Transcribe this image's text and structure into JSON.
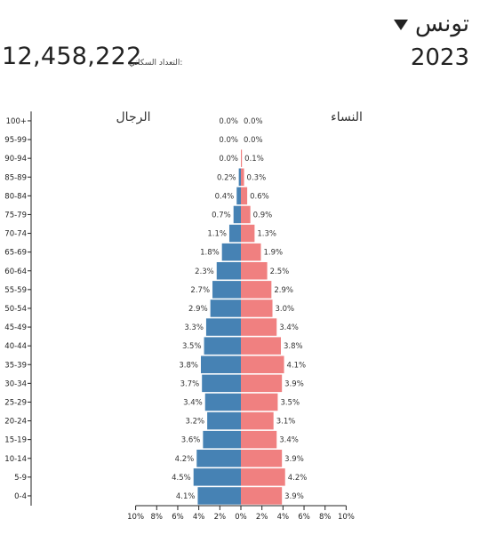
{
  "header": {
    "country": "تونس",
    "year": "2023",
    "population_label": "التعداد السكاني:",
    "population_value": "12,458,222"
  },
  "colors": {
    "male": "#4682b4",
    "female": "#f08080"
  },
  "chart_data": {
    "type": "bar",
    "orientation": "horizontal",
    "labels": {
      "male": "الرجال",
      "female": "النساء"
    },
    "categories": [
      "0-4",
      "5-9",
      "10-14",
      "15-19",
      "20-24",
      "25-29",
      "30-34",
      "35-39",
      "40-44",
      "45-49",
      "50-54",
      "55-59",
      "60-64",
      "65-69",
      "70-74",
      "75-79",
      "80-84",
      "85-89",
      "90-94",
      "95-99",
      "100+"
    ],
    "series": [
      {
        "name": "الرجال",
        "values": [
          4.1,
          4.5,
          4.2,
          3.6,
          3.2,
          3.4,
          3.7,
          3.8,
          3.5,
          3.3,
          2.9,
          2.7,
          2.3,
          1.8,
          1.1,
          0.7,
          0.4,
          0.2,
          0.0,
          0.0,
          0.0
        ],
        "value_labels": [
          "4.1%",
          "4.5%",
          "4.2%",
          "3.6%",
          "3.2%",
          "3.4%",
          "3.7%",
          "3.8%",
          "3.5%",
          "3.3%",
          "2.9%",
          "2.7%",
          "2.3%",
          "1.8%",
          "1.1%",
          "0.7%",
          "0.4%",
          "0.2%",
          "0.0%",
          "0.0%",
          "0.0%"
        ]
      },
      {
        "name": "النساء",
        "values": [
          3.9,
          4.2,
          3.9,
          3.4,
          3.1,
          3.5,
          3.9,
          4.1,
          3.8,
          3.4,
          3.0,
          2.9,
          2.5,
          1.9,
          1.3,
          0.9,
          0.6,
          0.3,
          0.1,
          0.0,
          0.0
        ],
        "value_labels": [
          "3.9%",
          "4.2%",
          "3.9%",
          "3.4%",
          "3.1%",
          "3.5%",
          "3.9%",
          "4.1%",
          "3.8%",
          "3.4%",
          "3.0%",
          "2.9%",
          "2.5%",
          "1.9%",
          "1.3%",
          "0.9%",
          "0.6%",
          "0.3%",
          "0.1%",
          "0.0%",
          "0.0%"
        ]
      }
    ],
    "xlim": [
      -10,
      10
    ],
    "x_ticks": [
      "10%",
      "8%",
      "6%",
      "4%",
      "2%",
      "0%",
      "2%",
      "4%",
      "6%",
      "8%",
      "10%"
    ],
    "grid": false
  }
}
